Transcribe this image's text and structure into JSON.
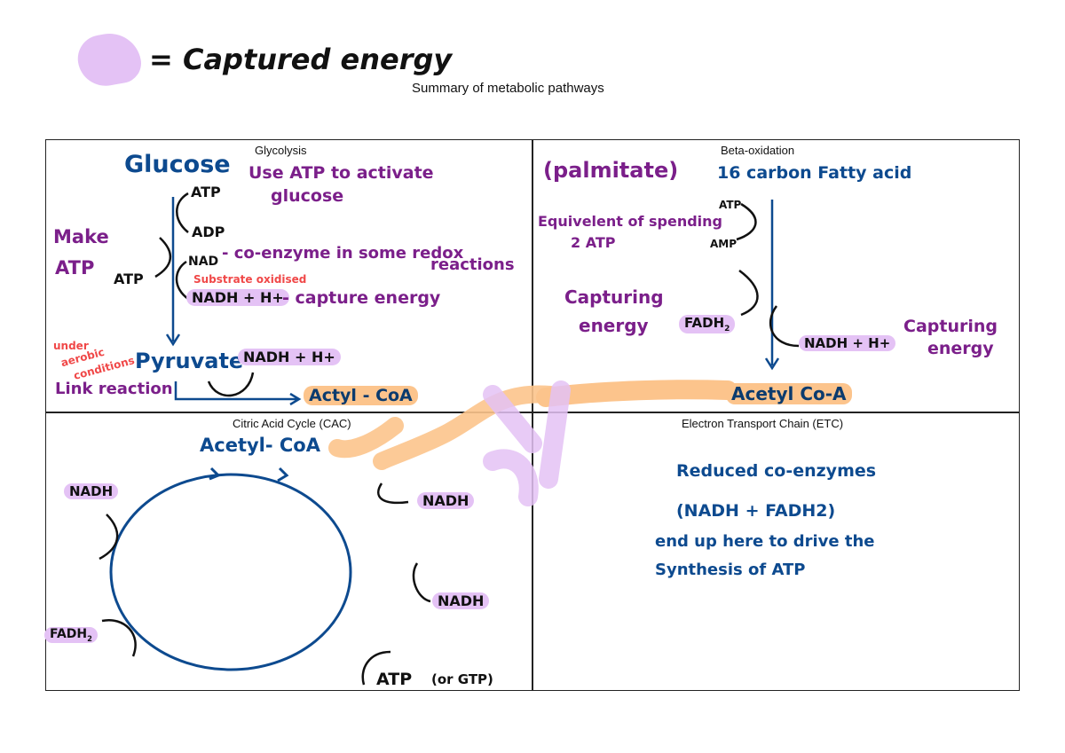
{
  "legend": {
    "label": "= Captured energy",
    "swatch_color": "#e4c2f5"
  },
  "title": "Summary of metabolic pathways",
  "colors": {
    "purple": "#7b1f8a",
    "navy": "#0d4a8f",
    "red": "#f04848",
    "highlight_purple": "#e4c2f5",
    "highlight_orange": "#fcc48c"
  },
  "glycolysis": {
    "caption": "Glycolysis",
    "glucose": "Glucose",
    "use_atp": "Use ATP to activate",
    "use_atp2": "glucose",
    "atp_in": "ATP",
    "adp": "ADP",
    "make": "Make",
    "make_atp": "ATP",
    "atp_out": "ATP",
    "nad": "NAD",
    "coenzyme": "- co-enzyme in some redox",
    "coenzyme2": "reactions",
    "substrate": "Substrate oxidised",
    "nadh": "NADH + H+",
    "capture": "- capture energy",
    "under": "under",
    "aerobic": "aerobic",
    "conditions": "conditions",
    "pyruvate": "Pyruvate",
    "nadh2": "NADH + H+",
    "link": "Link reaction",
    "acetyl": "Actyl - CoA"
  },
  "beta": {
    "caption": "Beta-oxidation",
    "palmitate": "(palmitate)",
    "fatty": "16 carbon Fatty acid",
    "atp": "ATP",
    "amp": "AMP",
    "equiv": "Equivelent of spending",
    "equiv2": "2 ATP",
    "capturing": "Capturing",
    "energy": "energy",
    "fadh": "FADH",
    "nadh": "NADH + H+",
    "capturing2": "Capturing",
    "energy2": "energy",
    "acetyl": "Acetyl Co-A"
  },
  "cac": {
    "caption": "Citric Acid Cycle (CAC)",
    "acetyl": "Acetyl- CoA",
    "nadh_left": "NADH",
    "nadh_right": "NADH",
    "nadh_lower": "NADH",
    "fadh": "FADH",
    "atp": "ATP",
    "gtp": "(or GTP)"
  },
  "etc": {
    "caption": "Electron Transport Chain (ETC)",
    "line1": "Reduced co-enzymes",
    "line2": "(NADH + FADH2)",
    "line3": "end up here to drive the",
    "line4": "Synthesis of ATP"
  }
}
